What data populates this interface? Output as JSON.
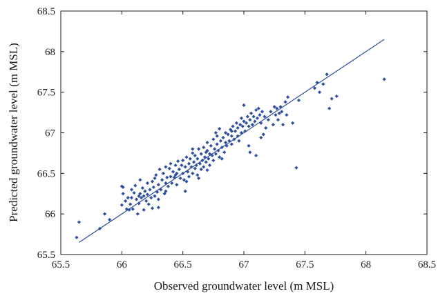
{
  "chart_data": {
    "type": "scatter",
    "title": "",
    "xlabel": "Observed groundwater level (m MSL)",
    "ylabel": "Predicted groundwater level (m MSL)",
    "xlim": [
      65.5,
      68.5
    ],
    "ylim": [
      65.5,
      68.5
    ],
    "x_ticks": [
      "65.5",
      "66",
      "66.5",
      "67",
      "67.5",
      "68",
      "68.5"
    ],
    "y_ticks": [
      "65.5",
      "66",
      "66.5",
      "67",
      "67.5",
      "68",
      "68.5"
    ],
    "grid": false,
    "legend": "none",
    "marker_color": "#2f4f9f",
    "line_color": "#2f4f9f",
    "fit_line": {
      "x": [
        65.65,
        68.15
      ],
      "y": [
        65.65,
        68.15
      ]
    },
    "series": [
      {
        "points": [
          [
            65.63,
            65.71
          ],
          [
            65.65,
            65.9
          ],
          [
            65.82,
            65.82
          ],
          [
            65.86,
            66.0
          ],
          [
            65.9,
            65.93
          ],
          [
            66.0,
            66.11
          ],
          [
            66.01,
            66.25
          ],
          [
            66.01,
            66.33
          ],
          [
            66.03,
            66.16
          ],
          [
            66.04,
            66.06
          ],
          [
            66.05,
            66.2
          ],
          [
            66.06,
            66.05
          ],
          [
            66.07,
            66.12
          ],
          [
            66.08,
            66.3
          ],
          [
            66.09,
            66.06
          ],
          [
            66.1,
            66.26
          ],
          [
            66.11,
            66.35
          ],
          [
            66.12,
            66.18
          ],
          [
            66.13,
            66.0
          ],
          [
            66.14,
            66.13
          ],
          [
            66.15,
            66.25
          ],
          [
            66.15,
            66.42
          ],
          [
            66.16,
            66.2
          ],
          [
            66.17,
            66.32
          ],
          [
            66.18,
            66.05
          ],
          [
            66.18,
            66.22
          ],
          [
            66.19,
            66.28
          ],
          [
            66.2,
            66.16
          ],
          [
            66.21,
            66.38
          ],
          [
            66.21,
            66.24
          ],
          [
            66.22,
            66.12
          ],
          [
            66.23,
            66.3
          ],
          [
            66.24,
            66.2
          ],
          [
            66.25,
            66.4
          ],
          [
            66.25,
            66.07
          ],
          [
            66.26,
            66.33
          ],
          [
            66.27,
            66.22
          ],
          [
            66.28,
            66.48
          ],
          [
            66.29,
            66.27
          ],
          [
            66.3,
            66.36
          ],
          [
            66.3,
            66.18
          ],
          [
            66.31,
            66.55
          ],
          [
            66.32,
            66.3
          ],
          [
            66.33,
            66.42
          ],
          [
            66.34,
            66.5
          ],
          [
            66.35,
            66.25
          ],
          [
            66.36,
            66.38
          ],
          [
            66.36,
            66.58
          ],
          [
            66.37,
            66.45
          ],
          [
            66.38,
            66.34
          ],
          [
            66.39,
            66.56
          ],
          [
            66.4,
            66.46
          ],
          [
            66.4,
            66.62
          ],
          [
            66.41,
            66.38
          ],
          [
            66.42,
            66.52
          ],
          [
            66.43,
            66.45
          ],
          [
            66.44,
            66.6
          ],
          [
            66.45,
            66.36
          ],
          [
            66.45,
            66.5
          ],
          [
            66.46,
            66.65
          ],
          [
            66.47,
            66.55
          ],
          [
            66.48,
            66.44
          ],
          [
            66.49,
            66.6
          ],
          [
            66.5,
            66.5
          ],
          [
            66.5,
            66.66
          ],
          [
            66.51,
            66.42
          ],
          [
            66.52,
            66.58
          ],
          [
            66.53,
            66.7
          ],
          [
            66.54,
            66.52
          ],
          [
            66.55,
            66.62
          ],
          [
            66.55,
            66.46
          ],
          [
            66.56,
            66.68
          ],
          [
            66.57,
            66.58
          ],
          [
            66.58,
            66.75
          ],
          [
            66.58,
            66.5
          ],
          [
            66.59,
            66.64
          ],
          [
            66.6,
            66.56
          ],
          [
            66.6,
            66.72
          ],
          [
            66.61,
            66.6
          ],
          [
            66.62,
            66.48
          ],
          [
            66.62,
            66.68
          ],
          [
            66.63,
            66.8
          ],
          [
            66.64,
            66.62
          ],
          [
            66.65,
            66.55
          ],
          [
            66.65,
            66.74
          ],
          [
            66.66,
            66.66
          ],
          [
            66.67,
            66.82
          ],
          [
            66.67,
            66.58
          ],
          [
            66.68,
            66.7
          ],
          [
            66.69,
            66.64
          ],
          [
            66.7,
            66.78
          ],
          [
            66.7,
            66.88
          ],
          [
            66.71,
            66.68
          ],
          [
            66.72,
            66.74
          ],
          [
            66.72,
            66.6
          ],
          [
            66.73,
            66.84
          ],
          [
            66.74,
            66.72
          ],
          [
            66.75,
            66.92
          ],
          [
            66.75,
            66.66
          ],
          [
            66.76,
            66.8
          ],
          [
            66.77,
            66.74
          ],
          [
            66.78,
            66.86
          ],
          [
            66.78,
            66.96
          ],
          [
            66.79,
            66.78
          ],
          [
            66.8,
            67.05
          ],
          [
            66.8,
            66.7
          ],
          [
            66.81,
            66.9
          ],
          [
            66.82,
            66.82
          ],
          [
            66.83,
            66.94
          ],
          [
            66.84,
            66.76
          ],
          [
            66.85,
            66.88
          ],
          [
            66.85,
            67.0
          ],
          [
            66.86,
            66.84
          ],
          [
            66.87,
            66.98
          ],
          [
            66.88,
            66.9
          ],
          [
            66.89,
            67.04
          ],
          [
            66.9,
            66.86
          ],
          [
            66.9,
            66.96
          ],
          [
            66.91,
            67.08
          ],
          [
            66.92,
            66.92
          ],
          [
            66.93,
            67.02
          ],
          [
            66.94,
            67.12
          ],
          [
            66.95,
            66.96
          ],
          [
            66.95,
            67.06
          ],
          [
            66.96,
            66.9
          ],
          [
            66.97,
            67.1
          ],
          [
            66.98,
            67.0
          ],
          [
            66.98,
            67.18
          ],
          [
            66.99,
            67.08
          ],
          [
            67.0,
            67.14
          ],
          [
            67.0,
            67.34
          ],
          [
            67.01,
            67.02
          ],
          [
            67.02,
            67.12
          ],
          [
            67.03,
            67.2
          ],
          [
            67.04,
            67.08
          ],
          [
            67.05,
            67.16
          ],
          [
            67.05,
            66.76
          ],
          [
            67.06,
            67.24
          ],
          [
            67.07,
            67.1
          ],
          [
            67.08,
            67.2
          ],
          [
            67.09,
            67.14
          ],
          [
            67.1,
            67.28
          ],
          [
            67.1,
            66.72
          ],
          [
            67.11,
            67.18
          ],
          [
            67.12,
            67.3
          ],
          [
            67.13,
            67.22
          ],
          [
            67.14,
            67.12
          ],
          [
            67.15,
            67.26
          ],
          [
            67.16,
            66.98
          ],
          [
            67.17,
            67.2
          ],
          [
            67.18,
            67.06
          ],
          [
            67.2,
            67.16
          ],
          [
            67.22,
            67.26
          ],
          [
            67.24,
            67.1
          ],
          [
            67.25,
            67.32
          ],
          [
            67.26,
            67.22
          ],
          [
            67.27,
            67.3
          ],
          [
            67.28,
            67.16
          ],
          [
            67.29,
            67.24
          ],
          [
            67.3,
            67.32
          ],
          [
            67.31,
            67.26
          ],
          [
            67.32,
            67.1
          ],
          [
            67.34,
            67.38
          ],
          [
            67.35,
            67.22
          ],
          [
            67.36,
            67.44
          ],
          [
            67.4,
            67.12
          ],
          [
            67.43,
            66.57
          ],
          [
            67.45,
            67.4
          ],
          [
            67.58,
            67.55
          ],
          [
            67.6,
            67.62
          ],
          [
            67.62,
            67.5
          ],
          [
            67.65,
            67.6
          ],
          [
            67.68,
            67.72
          ],
          [
            67.7,
            67.3
          ],
          [
            67.72,
            67.42
          ],
          [
            67.76,
            67.45
          ],
          [
            68.15,
            67.66
          ],
          [
            66.3,
            66.08
          ],
          [
            66.0,
            66.34
          ],
          [
            66.52,
            66.28
          ],
          [
            66.44,
            66.48
          ],
          [
            66.58,
            66.8
          ],
          [
            66.63,
            66.44
          ],
          [
            66.77,
            67.0
          ],
          [
            66.9,
            67.02
          ],
          [
            67.04,
            66.84
          ],
          [
            66.7,
            66.54
          ],
          [
            66.53,
            66.4
          ],
          [
            66.08,
            66.2
          ],
          [
            66.27,
            66.44
          ],
          [
            66.14,
            66.22
          ],
          [
            66.36,
            66.28
          ],
          [
            66.69,
            66.76
          ],
          [
            66.82,
            66.68
          ],
          [
            67.14,
            66.94
          ]
        ]
      }
    ]
  }
}
